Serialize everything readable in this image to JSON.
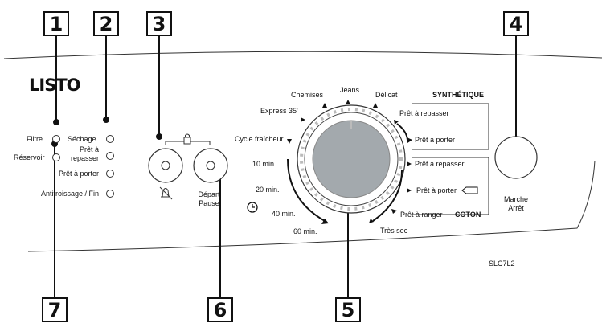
{
  "brand": "LISTO",
  "model": "SLC7L2",
  "callouts": [
    "1",
    "2",
    "3",
    "4",
    "5",
    "6",
    "7"
  ],
  "indicators_left": {
    "filtre": "Filtre",
    "reservoir": "Réservoir"
  },
  "indicators_right": {
    "sechage": "Séchage",
    "pret_repasser_l1": "Prêt à",
    "pret_repasser_l2": "repasser",
    "pret_porter": "Prêt à porter",
    "antifroissage": "Antifroissage / Fin"
  },
  "buttons": {
    "depart_l1": "Départ",
    "depart_l2": "Pause",
    "power_l1": "Marche",
    "power_l2": "Arrêt"
  },
  "dial": {
    "top": {
      "chemises": "Chemises",
      "jeans": "Jeans",
      "delicat": "Délicat"
    },
    "left": {
      "express": "Express 35'",
      "cycle_fraicheur": "Cycle fraîcheur",
      "min10": "10 min.",
      "min20": "20 min.",
      "min40": "40 min.",
      "min60": "60 min."
    },
    "synthetique": {
      "title": "SYNTHÉTIQUE",
      "repasser": "Prêt à repasser",
      "porter": "Prêt à porter"
    },
    "coton": {
      "title": "COTON",
      "repasser": "Prêt à repasser",
      "porter": "Prêt à porter",
      "ranger": "Prêt à ranger",
      "tres_sec": "Très sec"
    }
  },
  "colors": {
    "knob": "#a3a9ad",
    "ink": "#111111"
  }
}
